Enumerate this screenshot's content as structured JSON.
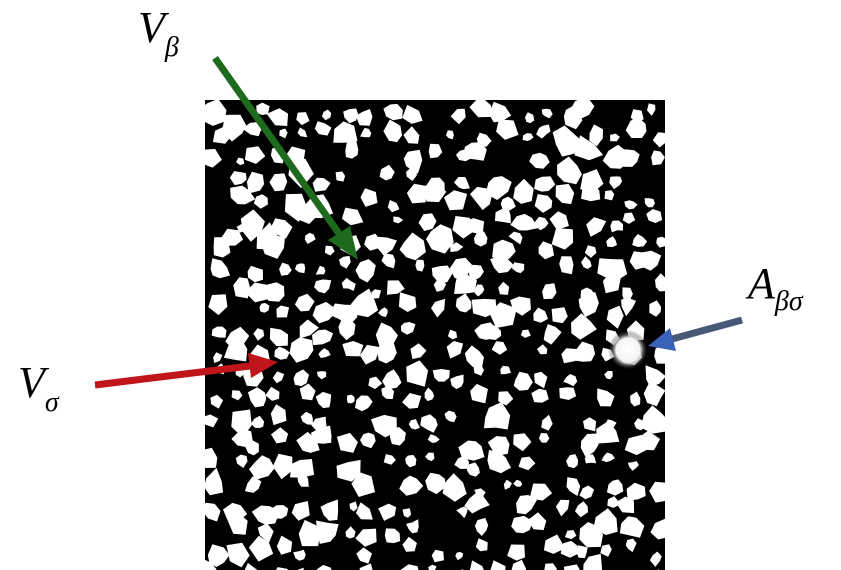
{
  "labels": [
    {
      "symbol": "V",
      "subscript": "β"
    },
    {
      "symbol": "V",
      "subscript": "σ"
    },
    {
      "symbol": "A",
      "subscript": "βσ"
    }
  ]
}
